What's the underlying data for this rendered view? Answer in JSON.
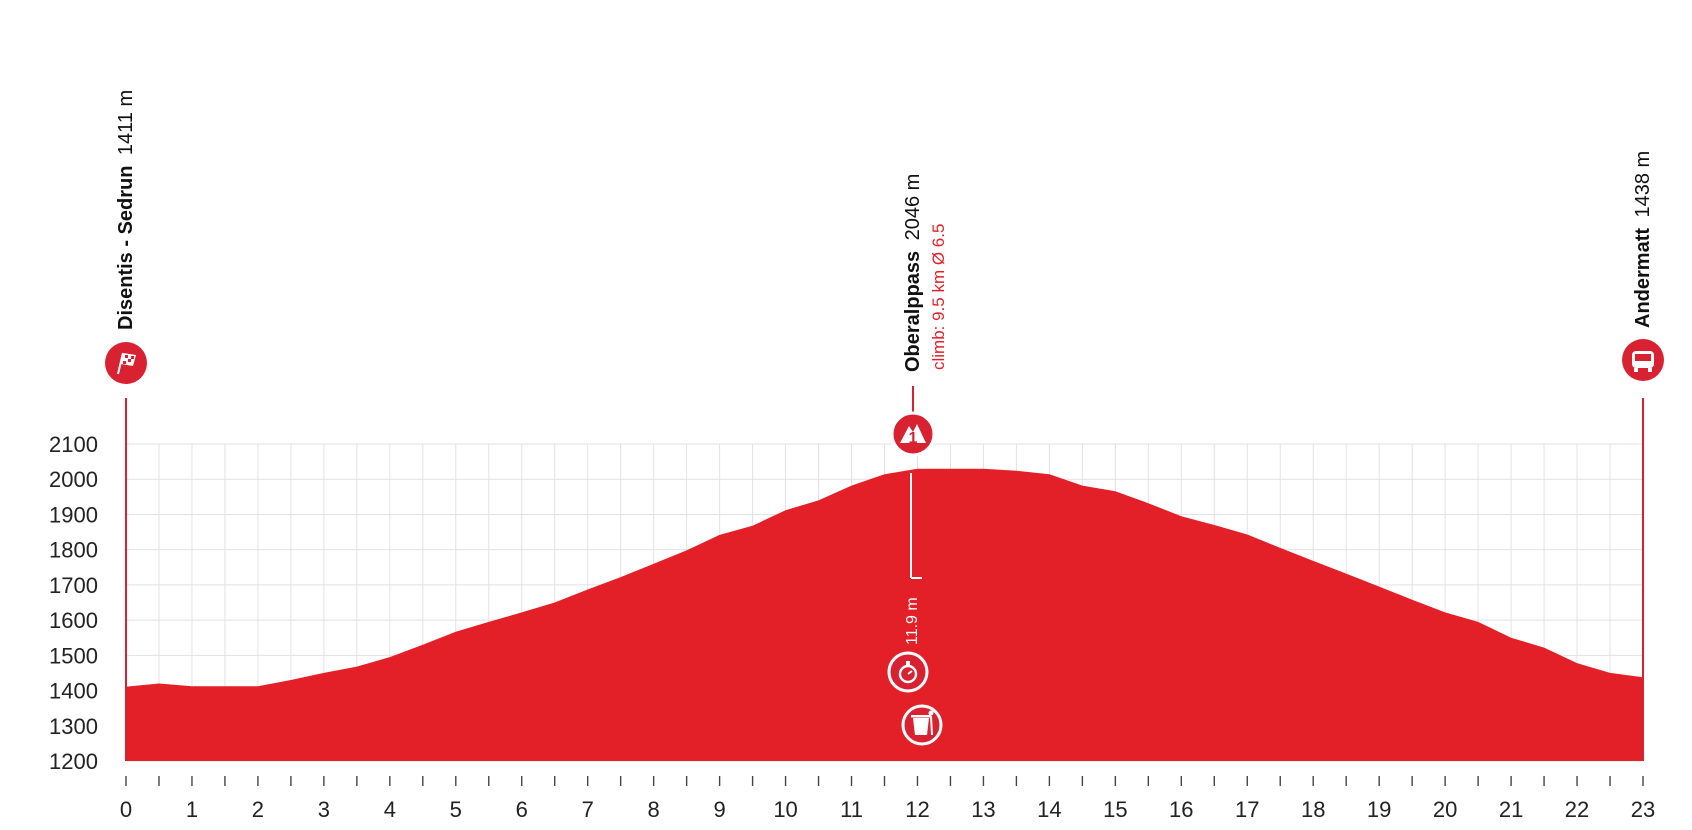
{
  "colors": {
    "profile": "#e32027",
    "grid": "#e2e2e2",
    "marker": "#d92231",
    "text": "#111111",
    "climb": "#e32027"
  },
  "start": {
    "name": "Disentis - Sedrun",
    "altitude": "1411 m",
    "icon": "checkered-flag-icon"
  },
  "finish": {
    "name": "Andermatt",
    "altitude": "1438 m",
    "icon": "bus-icon"
  },
  "summit": {
    "name": "Oberalppass",
    "altitude": "2046 m",
    "climb_info": "climb: 9.5 km Ø 6.5",
    "category": "1",
    "icon": "mountain-category-1-icon"
  },
  "intermediate": {
    "label": "11.9 m",
    "icon": "stopwatch-icon"
  },
  "waste_zone": {
    "icon": "trash-bin-icon"
  },
  "chart_data": {
    "type": "area",
    "title": "",
    "xlabel": "",
    "ylabel": "",
    "xlim": [
      0,
      23
    ],
    "ylim": [
      1200,
      2100
    ],
    "grid": true,
    "x_ticks": [
      0,
      1,
      2,
      3,
      4,
      5,
      6,
      7,
      8,
      9,
      10,
      11,
      12,
      13,
      14,
      15,
      16,
      17,
      18,
      19,
      20,
      21,
      22,
      23
    ],
    "y_ticks": [
      1200,
      1300,
      1400,
      1500,
      1600,
      1700,
      1800,
      1900,
      2000,
      2100
    ],
    "series": [
      {
        "x": [
          0,
          0.5,
          1,
          1.5,
          2,
          2.5,
          3,
          3.5,
          4,
          4.5,
          5,
          5.5,
          6,
          6.5,
          7,
          7.5,
          8,
          8.5,
          9,
          9.5,
          10,
          10.5,
          11,
          11.5,
          12,
          12.5,
          13,
          13.5,
          14,
          14.5,
          15,
          15.5,
          16,
          16.5,
          17,
          17.5,
          18,
          18.5,
          19,
          19.5,
          20,
          20.5,
          21,
          21.5,
          22,
          22.5,
          23
        ],
        "y": [
          1411,
          1420,
          1412,
          1412,
          1412,
          1430,
          1450,
          1468,
          1495,
          1530,
          1567,
          1595,
          1622,
          1650,
          1687,
          1722,
          1760,
          1798,
          1842,
          1868,
          1912,
          1940,
          1982,
          2014,
          2030,
          2030,
          2030,
          2024,
          2014,
          1982,
          1966,
          1932,
          1895,
          1870,
          1843,
          1805,
          1768,
          1732,
          1695,
          1658,
          1622,
          1595,
          1550,
          1522,
          1478,
          1450,
          1438
        ]
      }
    ]
  }
}
